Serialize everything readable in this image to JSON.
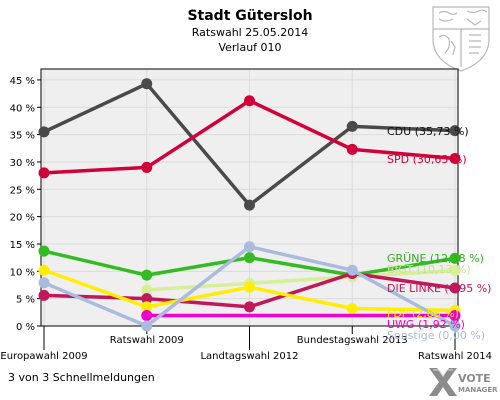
{
  "chart_data": {
    "type": "line",
    "title": "Stadt Gütersloh",
    "subtitle": "Ratswahl 25.05.2014",
    "subtitle2": "Verlauf 010",
    "categories": [
      "Europawahl 2009",
      "Ratswahl 2009",
      "Landtagswahl 2012",
      "Bundestagswahl 2013",
      "Ratswahl 2014"
    ],
    "ylim": [
      0,
      47
    ],
    "yticks": [
      0,
      5,
      10,
      15,
      20,
      25,
      30,
      35,
      40,
      45
    ],
    "ytick_labels": [
      "0 %",
      "5 %",
      "10 %",
      "15 %",
      "20 %",
      "25 %",
      "30 %",
      "35 %",
      "40 %",
      "45 %"
    ],
    "grid": true,
    "series": [
      {
        "name": "CDU",
        "label": "CDU (35,73 %)",
        "color": "#4a4a4a",
        "label_color": "#111111",
        "values": [
          35.5,
          44.3,
          22.1,
          36.5,
          35.73
        ]
      },
      {
        "name": "SPD",
        "label": "SPD (30,63 %)",
        "color": "#d2003a",
        "label_color": "#d2003a",
        "values": [
          28.0,
          29.0,
          41.2,
          32.3,
          30.63
        ]
      },
      {
        "name": "GRÜNE",
        "label": "GRÜNE (12,38 %)",
        "color": "#33bb22",
        "label_color": "#33aa22",
        "values": [
          13.7,
          9.3,
          12.5,
          9.3,
          12.38
        ]
      },
      {
        "name": "BfGT",
        "label": "BfGT (10,13 %)",
        "color": "#d8ef9a",
        "label_color": "#c8e48a",
        "values": [
          null,
          6.6,
          7.8,
          9.0,
          10.13
        ]
      },
      {
        "name": "DIE LINKE",
        "label": "DIE LINKE (6,95 %)",
        "color": "#c0185a",
        "label_color": "#c0185a",
        "values": [
          5.6,
          5.0,
          3.5,
          9.6,
          6.95
        ]
      },
      {
        "name": "FDP",
        "label": "FDP (2,86 %)",
        "color": "#ffee00",
        "label_color": "#ffee00",
        "values": [
          10.2,
          3.5,
          7.1,
          3.2,
          2.86
        ]
      },
      {
        "name": "UWG",
        "label": "UWG (1,92 %)",
        "color": "#ee00cc",
        "label_color": "#ee00cc",
        "values": [
          null,
          1.92,
          null,
          null,
          1.92
        ]
      },
      {
        "name": "Sonstige",
        "label": "Sonstige (0,00 %)",
        "color": "#aabbdd",
        "label_color": "#aabbdd",
        "values": [
          7.9,
          0.0,
          14.5,
          10.2,
          0.0
        ]
      }
    ]
  },
  "footer": {
    "note": "3 von 3 Schnellmeldungen",
    "logo_top": "VOTE",
    "logo_bottom": "MANAGER"
  },
  "colors": {
    "plot_bg": "#efefef",
    "grid": "#dcdcdc",
    "frame": "#000000"
  }
}
